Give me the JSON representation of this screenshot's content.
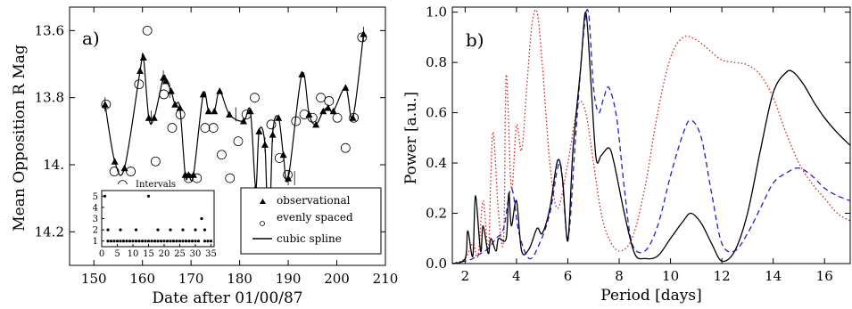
{
  "chart_data": [
    {
      "type": "line",
      "panel_label": "a)",
      "xlabel": "Date after 01/00/87",
      "ylabel": "Mean Opposition R Mag",
      "xlim": [
        145,
        210
      ],
      "ylim": [
        14.3,
        13.53
      ],
      "y_inverted": true,
      "xticks": [
        "150",
        "160",
        "170",
        "180",
        "190",
        "200",
        "210"
      ],
      "yticks": [
        "13.6",
        "13.8",
        "14.",
        "14.2"
      ],
      "legend": {
        "position": "bottom-right",
        "entries": [
          "observational",
          "evenly spaced",
          "cubic spline"
        ]
      },
      "series": [
        {
          "name": "observational",
          "marker": "filled-triangle",
          "x": [
            152.3,
            154.3,
            156.3,
            159.5,
            160.2,
            161.3,
            162.4,
            164.3,
            164.9,
            165.9,
            166.7,
            167.7,
            168.8,
            169.5,
            170.5,
            172.5,
            173.6,
            174.8,
            175.9,
            177.9,
            180.8,
            182.2,
            183.3,
            184.0,
            185.2,
            186.0,
            186.8,
            188.0,
            189.0,
            190.0,
            192.8,
            194.3,
            195.7,
            197.2,
            198.2,
            199.3,
            201.8,
            203.3,
            205.5
          ],
          "y": [
            13.82,
            13.99,
            14.01,
            13.72,
            13.68,
            13.86,
            13.86,
            13.74,
            13.75,
            13.78,
            13.82,
            13.83,
            14.03,
            14.03,
            14.03,
            13.79,
            13.84,
            13.84,
            13.78,
            13.85,
            13.87,
            13.84,
            14.07,
            13.9,
            13.94,
            14.25,
            13.91,
            13.86,
            13.97,
            14.04,
            13.73,
            13.85,
            13.88,
            13.84,
            13.83,
            13.84,
            13.77,
            13.86,
            13.61
          ]
        },
        {
          "name": "evenly spaced",
          "marker": "open-circle",
          "x": [
            152.5,
            154.2,
            155.9,
            157.6,
            159.3,
            161.0,
            162.7,
            164.4,
            166.1,
            167.8,
            169.5,
            171.2,
            172.9,
            174.6,
            176.3,
            178.0,
            179.7,
            181.4,
            183.1,
            184.8,
            186.5,
            188.2,
            189.9,
            191.6,
            193.3,
            195.0,
            196.7,
            198.4,
            200.1,
            201.8,
            203.5,
            205.2
          ],
          "y": [
            13.82,
            14.02,
            14.06,
            14.02,
            13.76,
            13.6,
            13.99,
            13.79,
            13.89,
            13.85,
            14.04,
            14.04,
            13.89,
            13.89,
            13.97,
            14.04,
            13.93,
            13.85,
            13.8,
            14.19,
            13.88,
            13.98,
            14.03,
            13.87,
            13.85,
            13.86,
            13.8,
            13.81,
            13.86,
            13.95,
            13.86,
            13.62
          ]
        }
      ],
      "error_bars_x": [
        152.3,
        161.8,
        164.3,
        165.6,
        179.2,
        185.2,
        186.8,
        190.0,
        191.3,
        205.5
      ],
      "inset": {
        "title": "Intervals",
        "xticks": [
          "0",
          "5",
          "10",
          "15",
          "20",
          "25",
          "30",
          "35"
        ],
        "yticks": [
          "1",
          "2",
          "3",
          "4",
          "5"
        ],
        "xlim": [
          0,
          36
        ],
        "ylim": [
          0.5,
          5.5
        ],
        "x": [
          1,
          2,
          3,
          4,
          5,
          6,
          7,
          8,
          9,
          10,
          11,
          12,
          13,
          14,
          15,
          16,
          17,
          18,
          19,
          20,
          21,
          22,
          23,
          24,
          25,
          26,
          27,
          28,
          29,
          30,
          31,
          32,
          33,
          34,
          35
        ],
        "y": [
          5,
          1,
          1,
          1,
          1,
          1,
          1,
          1,
          1,
          1,
          1,
          1,
          1,
          1,
          1,
          1,
          1,
          1,
          1,
          1,
          1,
          1,
          1,
          1,
          1,
          1,
          1,
          1,
          1,
          1,
          1,
          3,
          1,
          1,
          1
        ],
        "y_extra": [
          [
            2,
            2
          ],
          [
            6,
            2
          ],
          [
            11,
            2
          ],
          [
            15,
            5
          ],
          [
            18,
            2
          ],
          [
            22,
            2
          ],
          [
            26,
            2
          ],
          [
            30,
            2
          ],
          [
            33,
            2
          ]
        ]
      }
    },
    {
      "type": "line",
      "panel_label": "b)",
      "xlabel": "Period [days]",
      "ylabel": "Power [a.u.]",
      "xlim": [
        1.5,
        17
      ],
      "ylim": [
        0,
        1.02
      ],
      "xticks": [
        "2",
        "4",
        "6",
        "8",
        "10",
        "12",
        "14",
        "16"
      ],
      "yticks": [
        "0.0",
        "0.2",
        "0.4",
        "0.6",
        "0.8",
        "1.0"
      ],
      "series": [
        {
          "color": "#000000",
          "style": "solid",
          "x": [
            1.5,
            2.0,
            2.1,
            2.3,
            2.4,
            2.6,
            2.7,
            2.9,
            3.0,
            3.2,
            3.3,
            3.6,
            3.7,
            3.8,
            4.0,
            4.2,
            4.5,
            4.8,
            5.0,
            5.3,
            5.6,
            5.8,
            6.0,
            6.2,
            6.5,
            6.7,
            6.9,
            7.1,
            7.3,
            7.6,
            7.8,
            8.2,
            8.6,
            9.0,
            9.5,
            10.0,
            10.5,
            10.8,
            11.2,
            11.6,
            12.0,
            12.5,
            13.0,
            13.5,
            14.0,
            14.5,
            14.8,
            15.2,
            15.6,
            16.0,
            16.5,
            17.0
          ],
          "y": [
            0.0,
            0.02,
            0.13,
            0.03,
            0.27,
            0.05,
            0.15,
            0.04,
            0.1,
            0.05,
            0.1,
            0.1,
            0.28,
            0.15,
            0.25,
            0.05,
            0.06,
            0.14,
            0.12,
            0.22,
            0.41,
            0.33,
            0.09,
            0.45,
            0.78,
            1.0,
            0.72,
            0.42,
            0.43,
            0.46,
            0.4,
            0.2,
            0.04,
            0.02,
            0.03,
            0.1,
            0.17,
            0.2,
            0.16,
            0.08,
            0.01,
            0.05,
            0.2,
            0.45,
            0.68,
            0.76,
            0.76,
            0.71,
            0.64,
            0.58,
            0.52,
            0.47
          ]
        },
        {
          "color": "#1f1fd0",
          "style": "dashed",
          "x": [
            1.5,
            2.0,
            2.3,
            2.6,
            2.9,
            3.2,
            3.5,
            3.8,
            4.1,
            4.5,
            4.9,
            5.3,
            5.7,
            6.0,
            6.3,
            6.6,
            6.8,
            7.0,
            7.2,
            7.4,
            7.6,
            7.9,
            8.2,
            8.5,
            9.0,
            9.5,
            10.0,
            10.5,
            10.8,
            11.2,
            11.6,
            12.0,
            12.5,
            13.0,
            13.5,
            14.0,
            14.5,
            15.0,
            15.5,
            16.0,
            16.5,
            17.0
          ],
          "y": [
            0.0,
            0.01,
            0.02,
            0.04,
            0.06,
            0.1,
            0.14,
            0.3,
            0.12,
            0.02,
            0.08,
            0.2,
            0.4,
            0.1,
            0.5,
            0.9,
            1.0,
            0.7,
            0.6,
            0.66,
            0.7,
            0.58,
            0.3,
            0.08,
            0.05,
            0.15,
            0.35,
            0.52,
            0.57,
            0.5,
            0.28,
            0.08,
            0.05,
            0.12,
            0.22,
            0.32,
            0.36,
            0.38,
            0.35,
            0.3,
            0.27,
            0.25
          ]
        },
        {
          "color": "#e01b1b",
          "style": "dotted",
          "x": [
            1.5,
            2.0,
            2.3,
            2.5,
            2.7,
            2.9,
            3.0,
            3.1,
            3.3,
            3.5,
            3.6,
            3.8,
            4.0,
            4.2,
            4.4,
            4.6,
            4.8,
            5.0,
            5.3,
            5.6,
            6.0,
            6.4,
            6.7,
            7.0,
            7.3,
            7.6,
            8.0,
            8.5,
            9.0,
            9.5,
            10.0,
            10.5,
            11.0,
            11.5,
            12.0,
            12.5,
            13.0,
            13.5,
            14.0,
            14.5,
            15.0,
            15.5,
            16.0,
            16.5,
            17.0
          ],
          "y": [
            0.0,
            0.02,
            0.08,
            0.03,
            0.25,
            0.05,
            0.35,
            0.52,
            0.2,
            0.1,
            0.75,
            0.3,
            0.55,
            0.45,
            0.7,
            0.95,
            1.0,
            0.8,
            0.4,
            0.22,
            0.4,
            0.63,
            0.6,
            0.4,
            0.2,
            0.1,
            0.05,
            0.1,
            0.3,
            0.6,
            0.82,
            0.9,
            0.89,
            0.85,
            0.81,
            0.8,
            0.79,
            0.75,
            0.66,
            0.52,
            0.4,
            0.32,
            0.26,
            0.2,
            0.17
          ]
        }
      ]
    }
  ]
}
